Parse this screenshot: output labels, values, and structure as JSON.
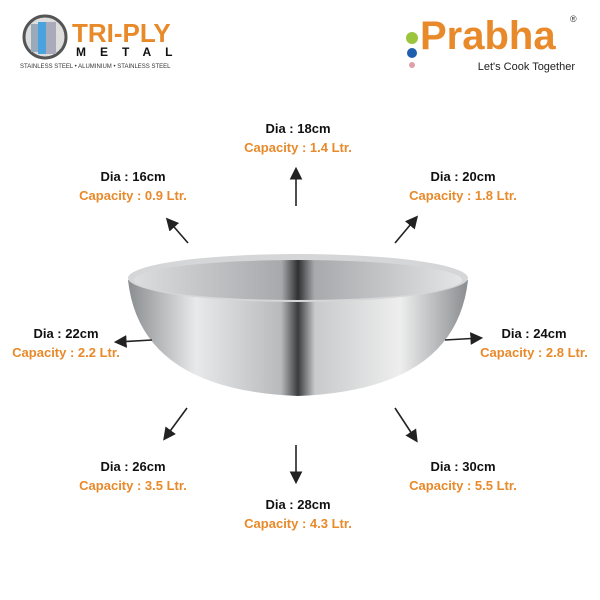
{
  "logos": {
    "triply": {
      "title": "TRI-PLY",
      "subtitle": "METAL",
      "tagline": "STAINLESS STEEL • ALUMINIUM • STAINLESS STEEL"
    },
    "brand": {
      "name": "Prabha",
      "registered": "®",
      "tagline": "Let's Cook Together"
    }
  },
  "colors": {
    "accent": "#e8892a",
    "text": "#111111"
  },
  "sizes": [
    {
      "dia": "Dia : 16cm",
      "capacity": "Capacity : 0.9 Ltr."
    },
    {
      "dia": "Dia : 18cm",
      "capacity": "Capacity : 1.4 Ltr."
    },
    {
      "dia": "Dia : 20cm",
      "capacity": "Capacity : 1.8 Ltr."
    },
    {
      "dia": "Dia : 22cm",
      "capacity": "Capacity : 2.2 Ltr."
    },
    {
      "dia": "Dia : 24cm",
      "capacity": "Capacity : 2.8 Ltr."
    },
    {
      "dia": "Dia : 26cm",
      "capacity": "Capacity : 3.5 Ltr."
    },
    {
      "dia": "Dia : 28cm",
      "capacity": "Capacity : 4.3 Ltr."
    },
    {
      "dia": "Dia : 30cm",
      "capacity": "Capacity : 5.5 Ltr."
    }
  ]
}
